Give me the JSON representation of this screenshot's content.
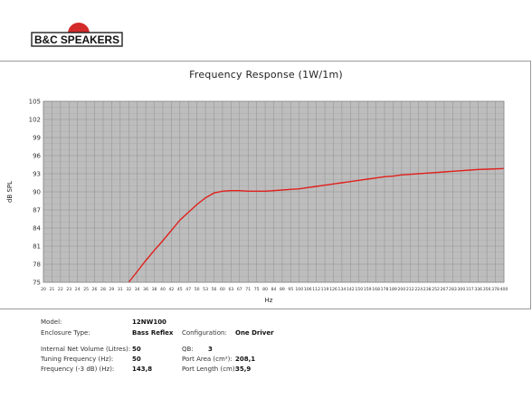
{
  "brand": {
    "logo_text": "B&C SPEAKERS",
    "accent": "#d32a2a"
  },
  "chart_data": {
    "type": "line",
    "title": "Frequency Response (1W/1m)",
    "xlabel": "Hz",
    "ylabel": "dB SPL",
    "ylim": [
      75,
      105
    ],
    "yticks": [
      75,
      78,
      81,
      84,
      87,
      90,
      93,
      96,
      99,
      102,
      105
    ],
    "xticks": [
      20,
      21,
      22,
      23,
      24,
      25,
      26,
      28,
      29,
      31,
      32,
      34,
      36,
      38,
      40,
      42,
      45,
      47,
      50,
      53,
      56,
      60,
      63,
      67,
      71,
      75,
      80,
      84,
      89,
      95,
      100,
      106,
      112,
      119,
      126,
      134,
      142,
      150,
      159,
      168,
      178,
      189,
      200,
      212,
      224,
      238,
      252,
      267,
      283,
      300,
      317,
      336,
      356,
      378,
      400
    ],
    "grid": true,
    "line_color": "#e0201c",
    "series": [
      {
        "x": [
          32,
          34,
          36,
          38,
          40,
          42,
          45,
          47,
          50,
          53,
          56,
          60,
          63,
          67,
          71,
          75,
          80,
          84,
          89,
          95,
          100,
          106,
          112,
          119,
          126,
          134,
          142,
          150,
          159,
          168,
          178,
          189,
          200,
          212,
          224,
          238,
          252,
          267,
          283,
          300,
          317,
          336,
          356,
          378,
          400
        ],
        "y": [
          75.0,
          76.8,
          78.6,
          80.3,
          81.9,
          83.6,
          85.3,
          86.6,
          87.9,
          89.0,
          89.8,
          90.1,
          90.2,
          90.2,
          90.1,
          90.1,
          90.1,
          90.2,
          90.3,
          90.4,
          90.5,
          90.7,
          90.9,
          91.1,
          91.3,
          91.5,
          91.7,
          91.9,
          92.1,
          92.3,
          92.5,
          92.6,
          92.8,
          92.9,
          93.0,
          93.1,
          93.2,
          93.3,
          93.4,
          93.5,
          93.6,
          93.7,
          93.75,
          93.8,
          93.85
        ]
      }
    ]
  },
  "specs": {
    "model_label": "Model:",
    "model_value": "12NW100",
    "enclosure_label": "Enclosure Type:",
    "enclosure_value": "Bass Reflex",
    "configuration_label": "Configuration:",
    "configuration_value": "One Driver",
    "net_volume_label": "Internal  Net Volume (Litres):",
    "net_volume_value": "50",
    "qb_label": "QB:",
    "qb_value": "3",
    "tuning_label": "Tuning Frequency (Hz):",
    "tuning_value": "50",
    "port_area_label": "Port Area (cm²):",
    "port_area_value": "208,1",
    "f3_label": "Frequency (-3 dB) (Hz):",
    "f3_value": "143,8",
    "port_length_label": "Port Length (cm):",
    "port_length_value": "35,9"
  }
}
